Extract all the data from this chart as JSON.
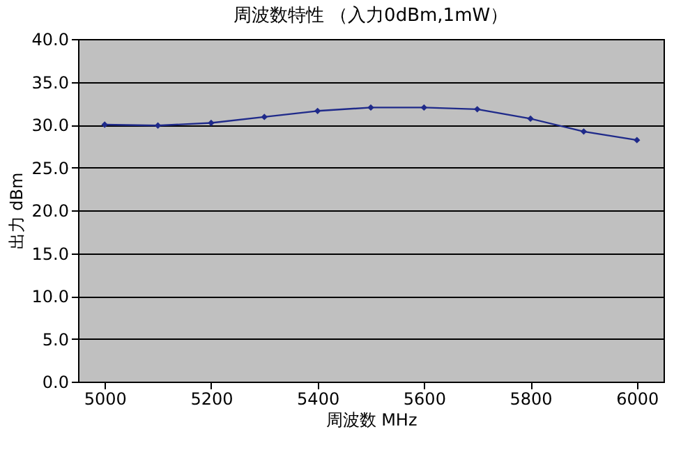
{
  "chart_data": {
    "type": "line",
    "title": "周波数特性 （入力0dBm,1mW）",
    "xlabel": "周波数 MHz",
    "ylabel": "出力 dBm",
    "x": [
      5000,
      5100,
      5200,
      5300,
      5400,
      5500,
      5600,
      5700,
      5800,
      5900,
      6000
    ],
    "series": [
      {
        "color": "#1f2a8a",
        "values": [
          30.0,
          29.9,
          30.2,
          30.9,
          31.6,
          32.0,
          32.0,
          31.8,
          30.7,
          29.2,
          28.2
        ]
      }
    ],
    "xlim": [
      4950,
      6050
    ],
    "xticks": [
      5000,
      5200,
      5400,
      5600,
      5800,
      6000
    ],
    "ylim": [
      0,
      40
    ],
    "yticks": [
      {
        "value": 0,
        "label": "0.0"
      },
      {
        "value": 5,
        "label": "5.0"
      },
      {
        "value": 10,
        "label": "10.0"
      },
      {
        "value": 15,
        "label": "15.0"
      },
      {
        "value": 20,
        "label": "20.0"
      },
      {
        "value": 25,
        "label": "25.0"
      },
      {
        "value": 30,
        "label": "30.0"
      },
      {
        "value": 35,
        "label": "35.0"
      },
      {
        "value": 40,
        "label": "40.0"
      }
    ],
    "grid": "y",
    "marker": "diamond",
    "line_style": "solid"
  }
}
